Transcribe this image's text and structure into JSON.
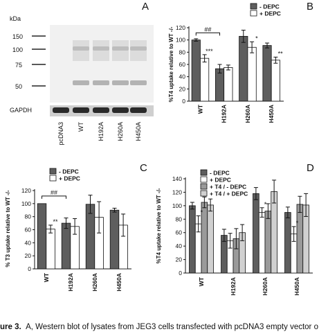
{
  "colors": {
    "depc_minus": "#5e5e5e",
    "depc_plus": "#ffffff",
    "t4_minus": "#9a9a9a",
    "t4_plus": "#d0d0d0",
    "axis": "#111111"
  },
  "panel_a": {
    "letter": "A",
    "kda_label": "kDa",
    "markers": [
      "150",
      "100",
      "75",
      "50"
    ],
    "loading_control": "GAPDH",
    "lanes": [
      "pcDNA3",
      "WT",
      "H192A",
      "H260A",
      "H450A"
    ]
  },
  "chart_data": [
    {
      "panel": "B",
      "type": "bar",
      "ylabel": "%T4 uptake relative to WT -/-",
      "ylim": [
        0,
        120
      ],
      "yticks": [
        0,
        20,
        40,
        60,
        80,
        100,
        120
      ],
      "categories": [
        "WT",
        "H192A",
        "H260A",
        "H450A"
      ],
      "series": [
        {
          "name": "- DEPC",
          "color": "#5e5e5e",
          "values": [
            100,
            53,
            106,
            91
          ],
          "errors": [
            2,
            7,
            10,
            4
          ]
        },
        {
          "name": "+ DEPC",
          "color": "#ffffff",
          "values": [
            70,
            55,
            88,
            67
          ],
          "errors": [
            6,
            4,
            9,
            5
          ]
        }
      ],
      "annotations": [
        {
          "category": 0,
          "series": 1,
          "text": "***"
        },
        {
          "category": 2,
          "series": 1,
          "text": "*"
        },
        {
          "category": 3,
          "series": 1,
          "text": "**"
        }
      ],
      "bracket": {
        "from": 0,
        "to": 1,
        "category": 0,
        "text": "##"
      },
      "legend": "top-right"
    },
    {
      "panel": "C",
      "type": "bar",
      "ylabel": "% T3 uptake relative to WT -/-",
      "ylim": [
        0,
        120
      ],
      "yticks": [
        0,
        20,
        40,
        60,
        80,
        100,
        120
      ],
      "categories": [
        "WT",
        "H192A",
        "H260A",
        "H450A"
      ],
      "series": [
        {
          "name": "- DEPC",
          "color": "#5e5e5e",
          "values": [
            100,
            70,
            99,
            90
          ],
          "errors": [
            0,
            8,
            14,
            3
          ]
        },
        {
          "name": "+ DEPC",
          "color": "#ffffff",
          "values": [
            61,
            65,
            79,
            67
          ],
          "errors": [
            6,
            12,
            24,
            17
          ]
        }
      ],
      "annotations": [
        {
          "category": 0,
          "series": 1,
          "text": "**"
        }
      ],
      "bracket": {
        "from": 0,
        "to": 1,
        "category": 0,
        "text": "##"
      },
      "legend": "top-left"
    },
    {
      "panel": "D",
      "type": "bar",
      "ylabel": "%T4 uptake relative to WT -/-",
      "ylim": [
        0,
        140
      ],
      "yticks": [
        0,
        20,
        40,
        60,
        80,
        100,
        120,
        140
      ],
      "categories": [
        "WT",
        "H192A",
        "H260A",
        "H450A"
      ],
      "series": [
        {
          "name": "- DEPC",
          "color": "#5e5e5e",
          "values": [
            100,
            56,
            118,
            90
          ],
          "errors": [
            5,
            9,
            9,
            8
          ]
        },
        {
          "name": "+ DEPC",
          "color": "#ffffff",
          "values": [
            73,
            48,
            90,
            58
          ],
          "errors": [
            12,
            11,
            7,
            11
          ]
        },
        {
          "name": "+ T4 / - DEPC",
          "color": "#9a9a9a",
          "values": [
            105,
            51,
            92,
            102
          ],
          "errors": [
            8,
            15,
            11,
            12
          ]
        },
        {
          "name": "+ T4 / + DEPC",
          "color": "#d0d0d0",
          "values": [
            101,
            60,
            121,
            101
          ],
          "errors": [
            9,
            12,
            17,
            17
          ]
        }
      ],
      "annotations": [
        {
          "category": 0,
          "series": 1,
          "text": "*"
        },
        {
          "category": 2,
          "series": 1,
          "text": "*"
        },
        {
          "category": 3,
          "series": 1,
          "text": "*"
        }
      ],
      "legend": "top-left"
    }
  ],
  "caption": {
    "prefix": "ure 3.",
    "text": "A, Western blot of lysates from JEG3 cells transfected with pcDNA3 empty vector o"
  }
}
